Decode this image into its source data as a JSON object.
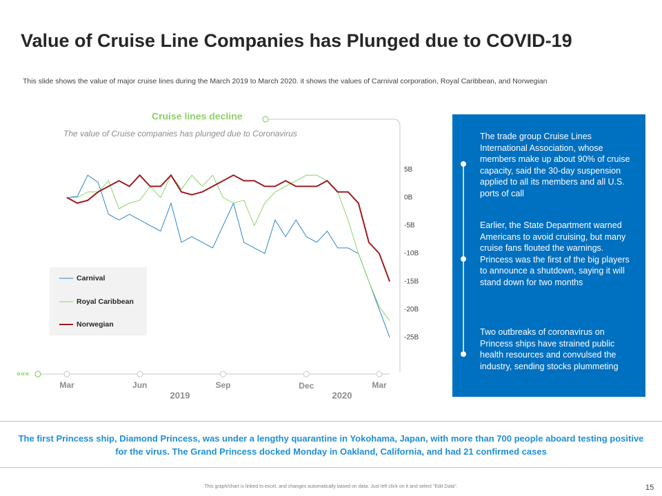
{
  "header": {
    "title": "Value of Cruise Line Companies has Plunged due to COVID-19",
    "subtitle": "This slide shows the value of major cruise lines during the March 2019 to March 2020. it shows the values of Carnival corporation, Royal Caribbean, and Norwegian"
  },
  "chart_data": {
    "type": "line",
    "title": "Cruise lines decline",
    "subtitle": "The value of Cruise companies has plunged due to Coronavirus",
    "categories": [
      "Mar",
      null,
      null,
      null,
      null,
      null,
      null,
      "Jun",
      null,
      null,
      null,
      null,
      null,
      null,
      null,
      "Sep",
      null,
      null,
      null,
      null,
      null,
      null,
      null,
      "Dec",
      null,
      null,
      null,
      null,
      null,
      null,
      "Mar",
      null
    ],
    "year_labels": [
      "2019",
      "2020"
    ],
    "series": [
      {
        "name": "Carnival",
        "color": "#2e86c8",
        "values": [
          0,
          0.2,
          4,
          2.7,
          -3,
          -4,
          -3,
          -4,
          -5,
          -6,
          -1,
          -8,
          -7,
          -8,
          -9,
          -5,
          -1,
          -8,
          -9,
          -10,
          -4,
          -7,
          -4,
          -7,
          -8,
          -6,
          -9,
          -9,
          -10,
          -15,
          -20,
          -25
        ]
      },
      {
        "name": "Royal Caribbean",
        "color": "#8fd16a",
        "values": [
          0,
          0,
          1,
          1,
          3,
          -2,
          -1,
          -0.5,
          2,
          0,
          4,
          1.5,
          4,
          2,
          4,
          0,
          -1,
          -0.5,
          -5,
          -1,
          1,
          2,
          3,
          4,
          4,
          3,
          1,
          -4,
          -10,
          -15,
          -19.5,
          -22
        ]
      },
      {
        "name": "Norwegian",
        "color": "#9b1b20",
        "values": [
          0,
          -1,
          -0.5,
          1,
          2,
          3,
          2,
          4,
          2,
          2,
          4,
          1,
          0.5,
          1,
          2,
          3,
          4,
          3,
          3,
          2,
          2,
          3,
          2,
          2,
          2,
          3,
          1,
          1,
          -1,
          -8,
          -10,
          -15
        ]
      }
    ],
    "ylim": [
      -26,
      6
    ],
    "yticks": [
      {
        "value": 5,
        "label": "5B"
      },
      {
        "value": 0,
        "label": "0B"
      },
      {
        "value": -5,
        "label": "-5B"
      },
      {
        "value": -10,
        "label": "-10B"
      },
      {
        "value": -15,
        "label": "-15B"
      },
      {
        "value": -20,
        "label": "-20B"
      },
      {
        "value": -25,
        "label": "-25B"
      }
    ],
    "legend": "lower-left",
    "grid": false
  },
  "notes": [
    "The trade group Cruise Lines International Association, whose members make up about 90% of cruise capacity, said the 30-day suspension applied to all its members and all U.S. ports of call",
    "Earlier, the State Department warned Americans to avoid cruising, but many cruise fans flouted the warnings. Princess was the first of the big players to announce a shutdown, saying it will stand down for two months",
    "Two outbreaks of coronavirus on Princess ships have strained public health resources and convulsed the industry, sending stocks plummeting"
  ],
  "callout": "The first Princess ship, Diamond Princess, was under a lengthy quarantine in Yokohama, Japan, with more than 700 people aboard testing positive for the virus. The Grand Princess docked Monday in Oakland, California, and had 21 confirmed cases",
  "footer": "This graph/chart is linked to excel, and changes automatically based on data. Just left click on it and select \"Edit Data\".",
  "page_number": 15
}
